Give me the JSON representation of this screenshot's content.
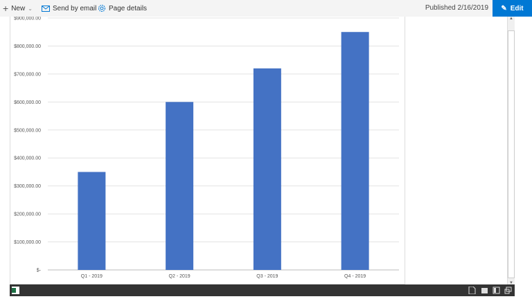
{
  "toolbar": {
    "new_label": "New",
    "send_label": "Send by email",
    "details_label": "Page details",
    "published": "Published 2/16/2019",
    "edit_label": "Edit"
  },
  "colors": {
    "accent": "#0078d4",
    "bar": "#4472c4",
    "statusbar": "#333333"
  },
  "chart_data": {
    "type": "bar",
    "categories": [
      "Q1 - 2019",
      "Q2 - 2019",
      "Q3 - 2019",
      "Q4 - 2019"
    ],
    "values": [
      350000,
      600000,
      720000,
      850000
    ],
    "ylim": [
      0,
      900000
    ],
    "yticks": [
      0,
      100000,
      200000,
      300000,
      400000,
      500000,
      600000,
      700000,
      800000,
      900000
    ],
    "ytick_labels": [
      "$-",
      "$100,000.00",
      "$200,000.00",
      "$300,000.00",
      "$400,000.00",
      "$500,000.00",
      "$600,000.00",
      "$700,000.00",
      "$800,000.00",
      "$900,000.00"
    ],
    "grid": true
  }
}
